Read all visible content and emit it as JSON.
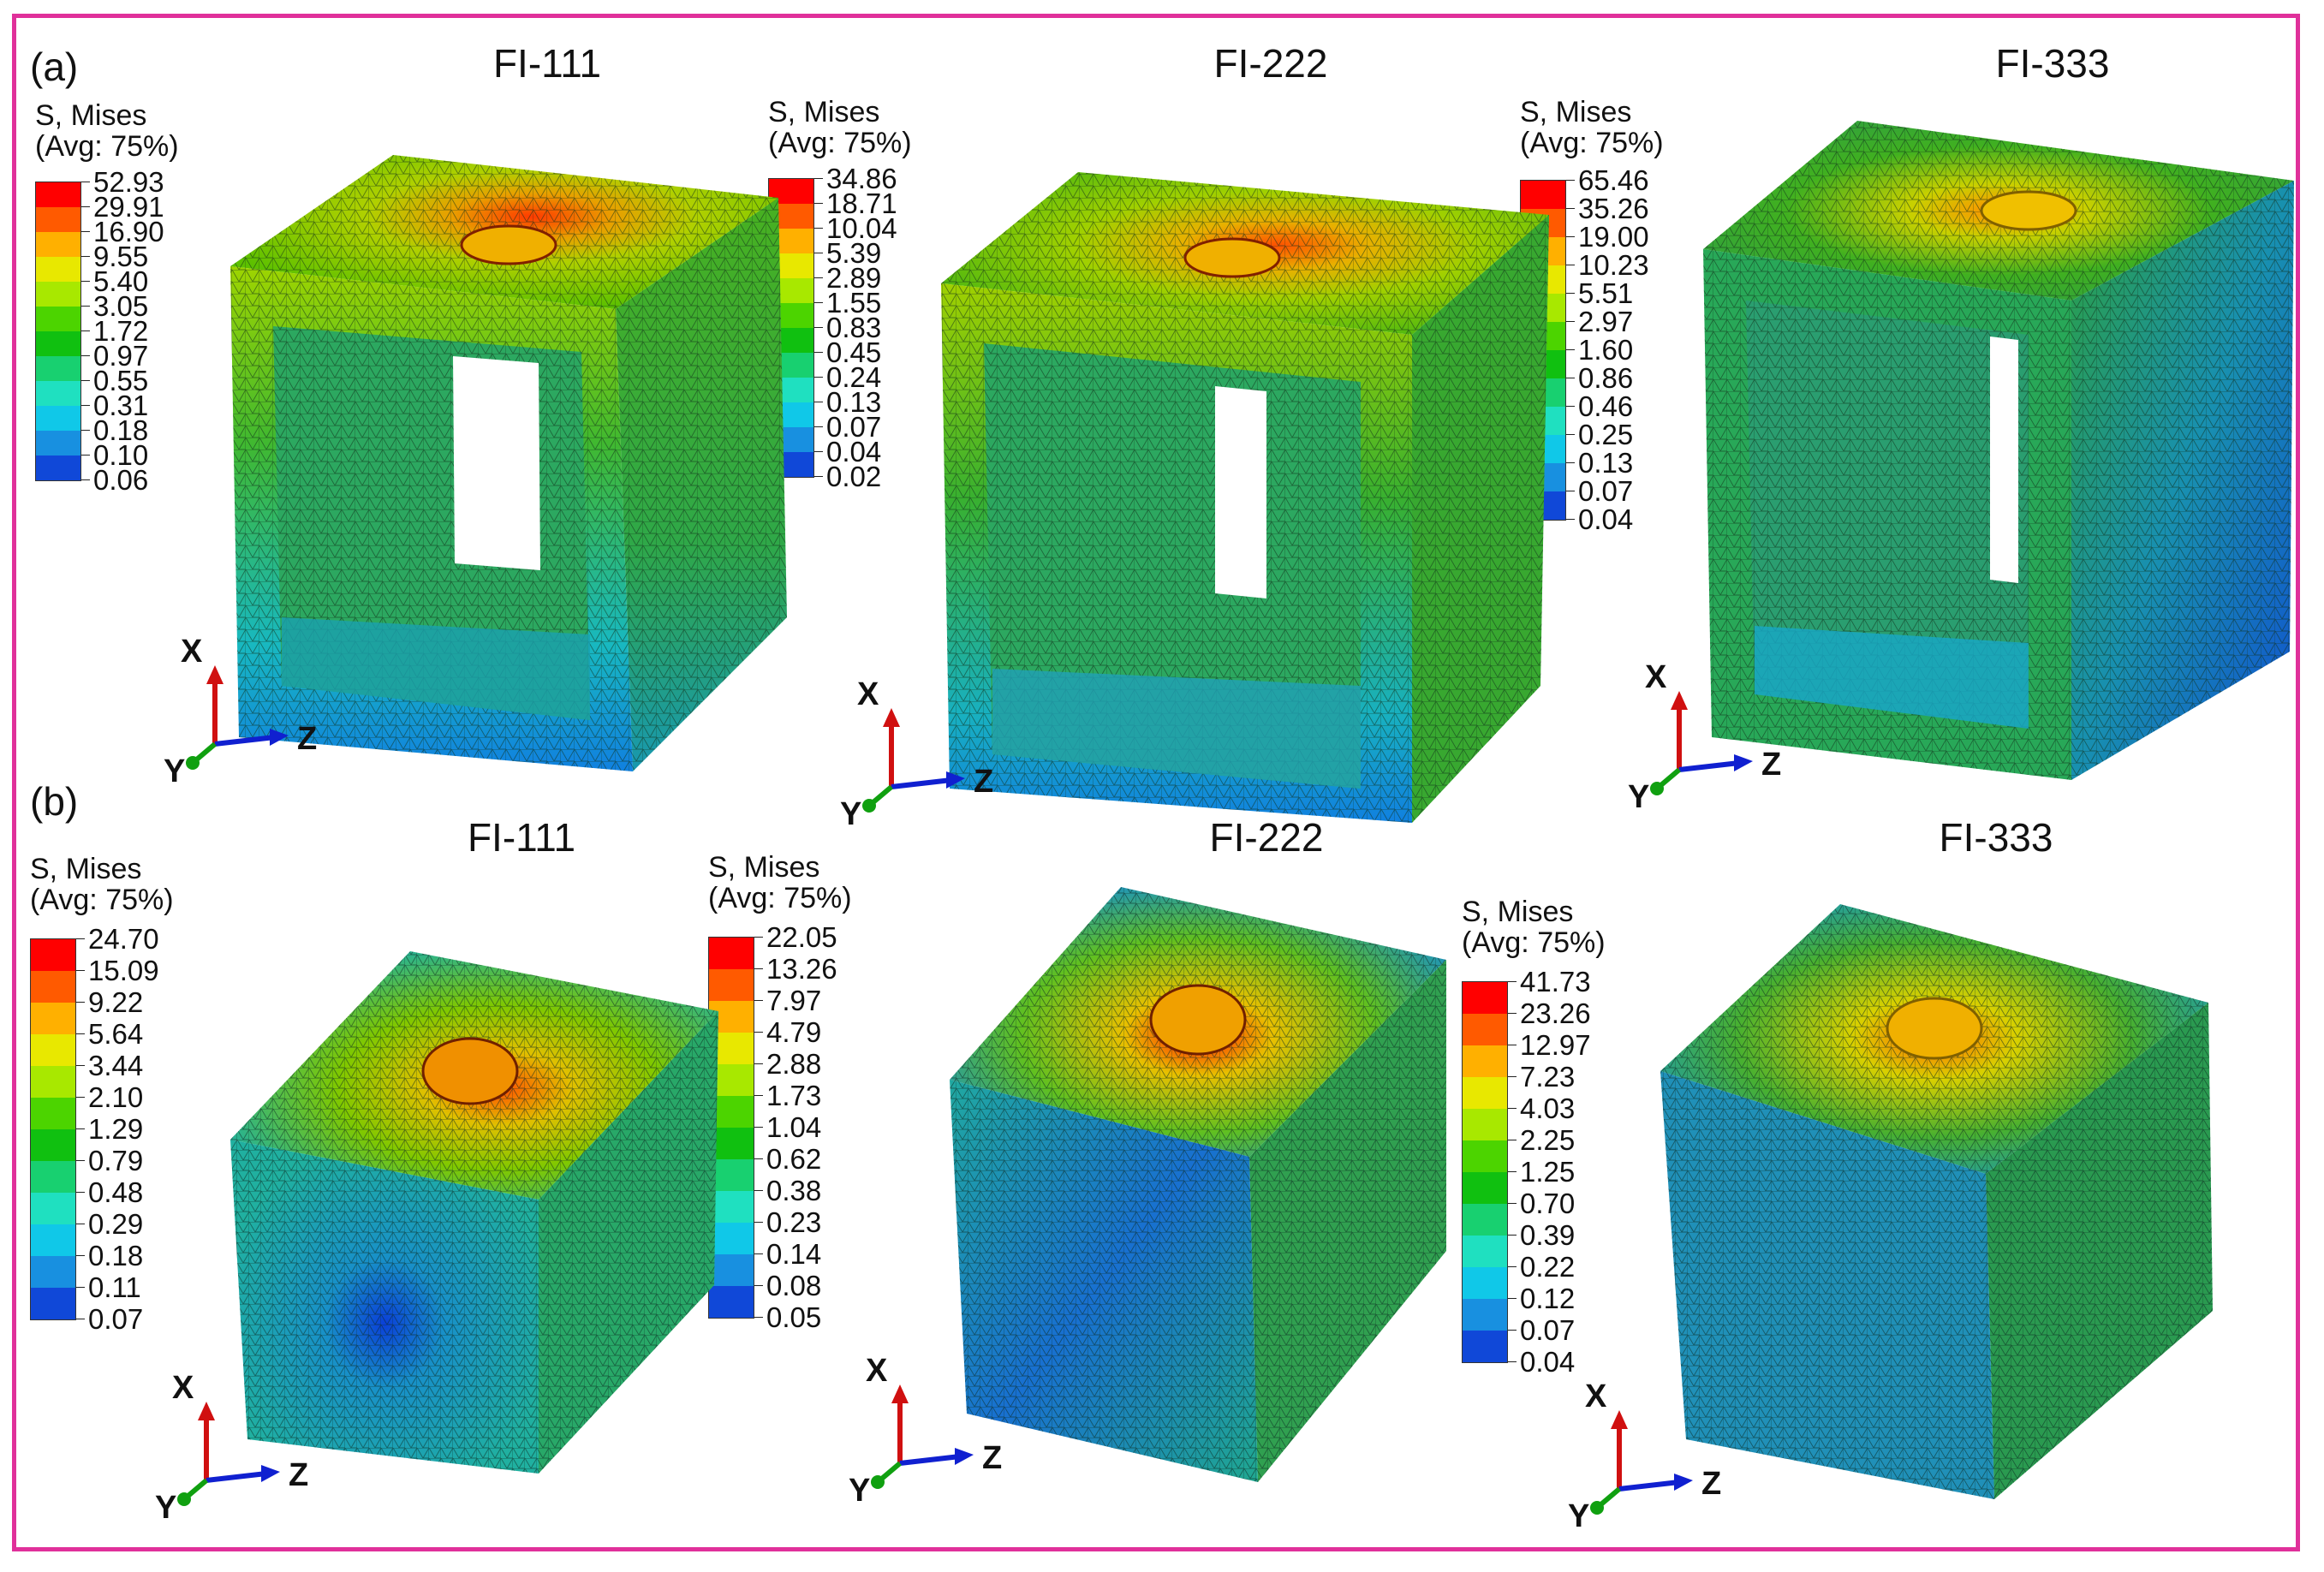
{
  "panels": [
    {
      "label": "(a)",
      "models": [
        {
          "title": "FI-111",
          "legend": {
            "line1": "S, Mises",
            "line2": "(Avg: 75%)",
            "values": [
              "52.93",
              "29.91",
              "16.90",
              "9.55",
              "5.40",
              "3.05",
              "1.72",
              "0.97",
              "0.55",
              "0.31",
              "0.18",
              "0.10",
              "0.06"
            ]
          },
          "axes": {
            "x": "X",
            "y": "Y",
            "z": "Z"
          }
        },
        {
          "title": "FI-222",
          "legend": {
            "line1": "S, Mises",
            "line2": "(Avg: 75%)",
            "values": [
              "34.86",
              "18.71",
              "10.04",
              "5.39",
              "2.89",
              "1.55",
              "0.83",
              "0.45",
              "0.24",
              "0.13",
              "0.07",
              "0.04",
              "0.02"
            ]
          },
          "axes": {
            "x": "X",
            "y": "Y",
            "z": "Z"
          }
        },
        {
          "title": "FI-333",
          "legend": {
            "line1": "S, Mises",
            "line2": "(Avg: 75%)",
            "values": [
              "65.46",
              "35.26",
              "19.00",
              "10.23",
              "5.51",
              "2.97",
              "1.60",
              "0.86",
              "0.46",
              "0.25",
              "0.13",
              "0.07",
              "0.04"
            ]
          },
          "axes": {
            "x": "X",
            "y": "Y",
            "z": "Z"
          }
        }
      ]
    },
    {
      "label": "(b)",
      "models": [
        {
          "title": "FI-111",
          "legend": {
            "line1": "S, Mises",
            "line2": "(Avg: 75%)",
            "values": [
              "24.70",
              "15.09",
              "9.22",
              "5.64",
              "3.44",
              "2.10",
              "1.29",
              "0.79",
              "0.48",
              "0.29",
              "0.18",
              "0.11",
              "0.07"
            ]
          },
          "axes": {
            "x": "X",
            "y": "Y",
            "z": "Z"
          }
        },
        {
          "title": "FI-222",
          "legend": {
            "line1": "S, Mises",
            "line2": "(Avg: 75%)",
            "values": [
              "22.05",
              "13.26",
              "7.97",
              "4.79",
              "2.88",
              "1.73",
              "1.04",
              "0.62",
              "0.38",
              "0.23",
              "0.14",
              "0.08",
              "0.05"
            ]
          },
          "axes": {
            "x": "X",
            "y": "Y",
            "z": "Z"
          }
        },
        {
          "title": "FI-333",
          "legend": {
            "line1": "S, Mises",
            "line2": "(Avg: 75%)",
            "values": [
              "41.73",
              "23.26",
              "12.97",
              "7.23",
              "4.03",
              "2.25",
              "1.25",
              "0.70",
              "0.39",
              "0.22",
              "0.12",
              "0.07",
              "0.04"
            ]
          },
          "axes": {
            "x": "X",
            "y": "Y",
            "z": "Z"
          }
        }
      ]
    }
  ],
  "colors": {
    "frame": "#e0309a",
    "contour_scale": [
      "#ff0000",
      "#ff5a00",
      "#ffb000",
      "#e8e800",
      "#a8e800",
      "#4cd400",
      "#10c010",
      "#18d070",
      "#1fe0c0",
      "#10c8e8",
      "#1890e0",
      "#1048d8",
      "#0010ff"
    ],
    "axis_x": "#d01010",
    "axis_y": "#10a010",
    "axis_z": "#1020d0"
  }
}
